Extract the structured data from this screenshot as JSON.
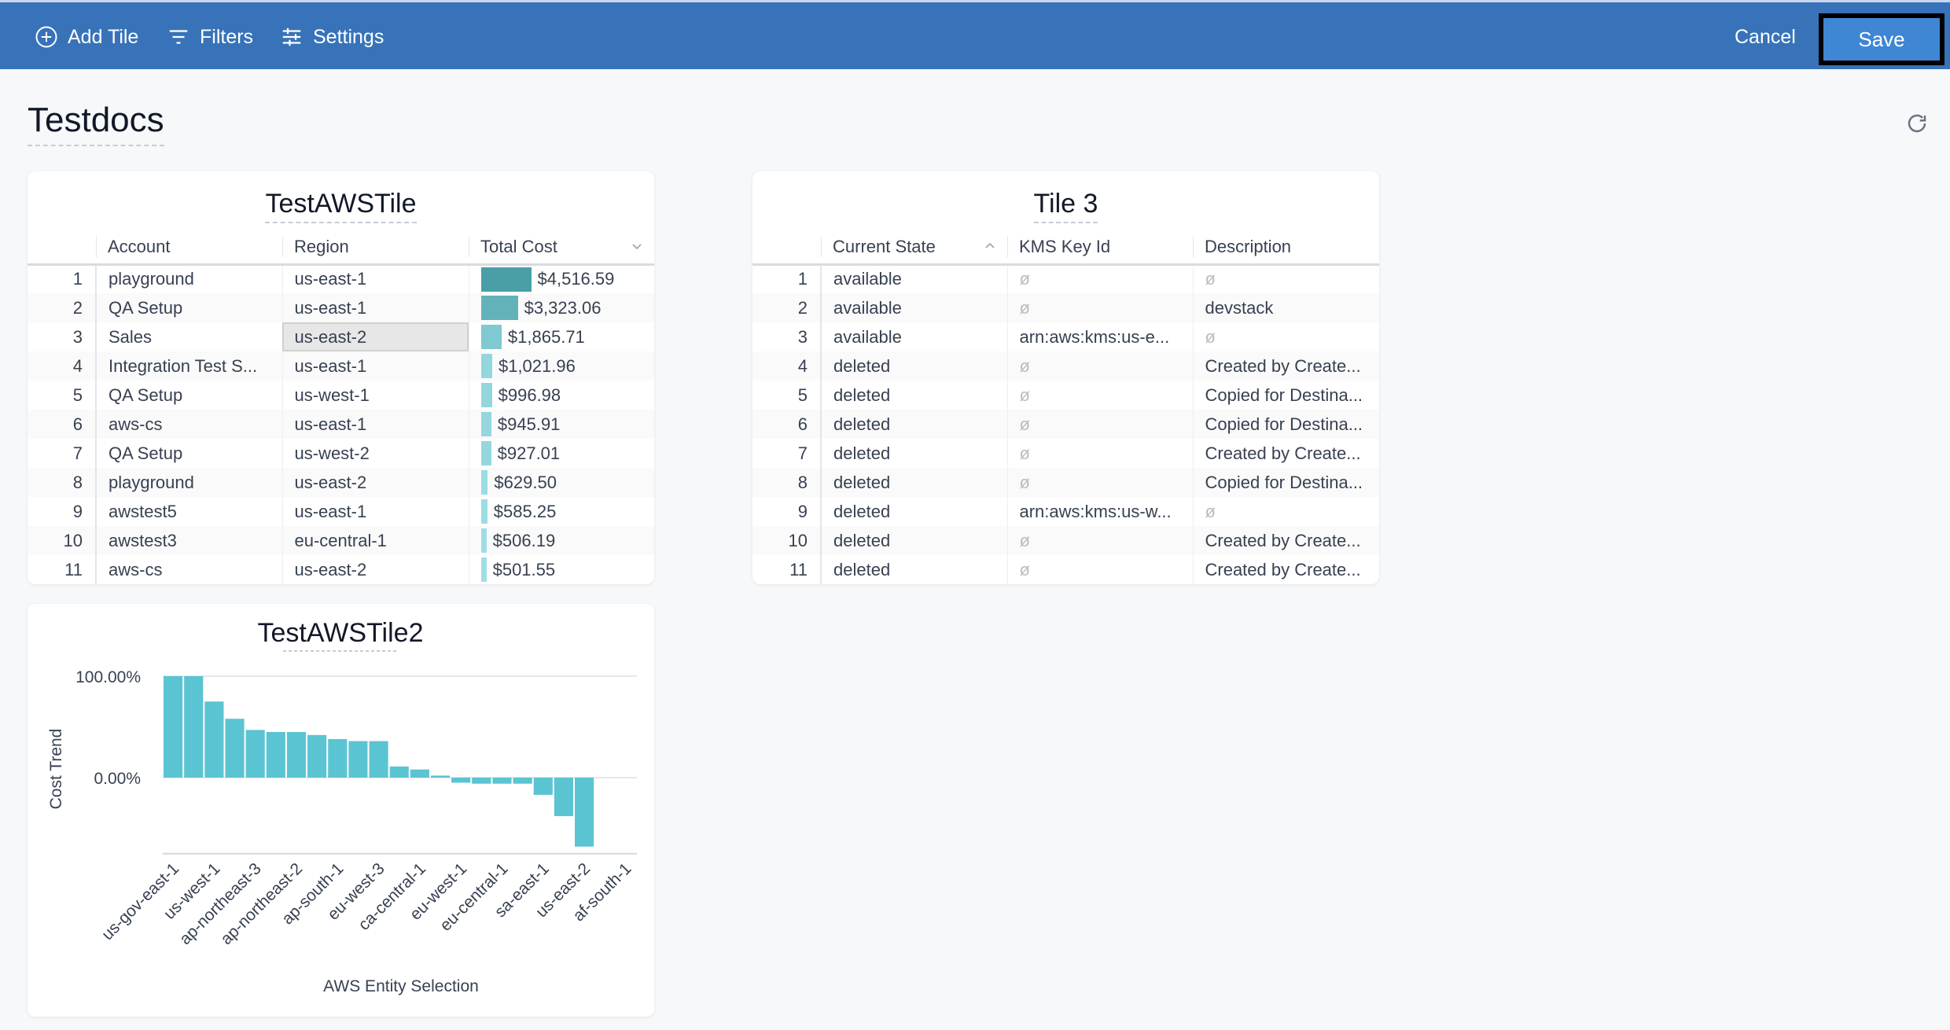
{
  "toolbar": {
    "add_tile": "Add Tile",
    "filters": "Filters",
    "settings": "Settings",
    "cancel": "Cancel",
    "save": "Save"
  },
  "page": {
    "title": "Testdocs"
  },
  "colors": {
    "header": "#3873b9",
    "save": "#3f86d4",
    "bar": "#5bc4d2"
  },
  "tile1": {
    "title": "TestAWSTile",
    "columns": [
      "Account",
      "Region",
      "Total Cost"
    ],
    "rows": [
      [
        "1",
        "playground",
        "us-east-1",
        "$4,516.59",
        4516.59
      ],
      [
        "2",
        "QA Setup",
        "us-east-1",
        "$3,323.06",
        3323.06
      ],
      [
        "3",
        "Sales",
        "us-east-2",
        "$1,865.71",
        1865.71
      ],
      [
        "4",
        "Integration Test S...",
        "us-east-1",
        "$1,021.96",
        1021.96
      ],
      [
        "5",
        "QA Setup",
        "us-west-1",
        "$996.98",
        996.98
      ],
      [
        "6",
        "aws-cs",
        "us-east-1",
        "$945.91",
        945.91
      ],
      [
        "7",
        "QA Setup",
        "us-west-2",
        "$927.01",
        927.01
      ],
      [
        "8",
        "playground",
        "us-east-2",
        "$629.50",
        629.5
      ],
      [
        "9",
        "awstest5",
        "us-east-1",
        "$585.25",
        585.25
      ],
      [
        "10",
        "awstest3",
        "eu-central-1",
        "$506.19",
        506.19
      ],
      [
        "11",
        "aws-cs",
        "us-east-2",
        "$501.55",
        501.55
      ]
    ]
  },
  "tile3": {
    "title": "Tile 3",
    "columns": [
      "Current State",
      "KMS Key Id",
      "Description"
    ],
    "null_symbol": "ø",
    "rows": [
      [
        "1",
        "available",
        null,
        null
      ],
      [
        "2",
        "available",
        null,
        "devstack"
      ],
      [
        "3",
        "available",
        "arn:aws:kms:us-e...",
        null
      ],
      [
        "4",
        "deleted",
        null,
        "Created by Create..."
      ],
      [
        "5",
        "deleted",
        null,
        "Copied for Destina..."
      ],
      [
        "6",
        "deleted",
        null,
        "Copied for Destina..."
      ],
      [
        "7",
        "deleted",
        null,
        "Created by Create..."
      ],
      [
        "8",
        "deleted",
        null,
        "Copied for Destina..."
      ],
      [
        "9",
        "deleted",
        "arn:aws:kms:us-w...",
        null
      ],
      [
        "10",
        "deleted",
        null,
        "Created by Create..."
      ],
      [
        "11",
        "deleted",
        null,
        "Created by Create..."
      ]
    ]
  },
  "chart_data": {
    "type": "bar",
    "title": "TestAWSTile2",
    "xlabel": "AWS Entity Selection",
    "ylabel": "Cost Trend",
    "y_ticks": [
      "100.00%",
      "0.00%"
    ],
    "ylim": [
      -75,
      100
    ],
    "grid": true,
    "tick_labels": [
      "us-gov-east-1",
      "us-west-1",
      "ap-northeast-3",
      "ap-northeast-2",
      "ap-south-1",
      "eu-west-3",
      "ca-central-1",
      "eu-west-1",
      "eu-central-1",
      "sa-east-1",
      "us-east-2",
      "af-south-1"
    ],
    "values": [
      100,
      100,
      75,
      58,
      47,
      45,
      45,
      42,
      38,
      36,
      36,
      11,
      8,
      2,
      -5,
      -6,
      -6,
      -6,
      -17,
      -38,
      -68
    ]
  }
}
